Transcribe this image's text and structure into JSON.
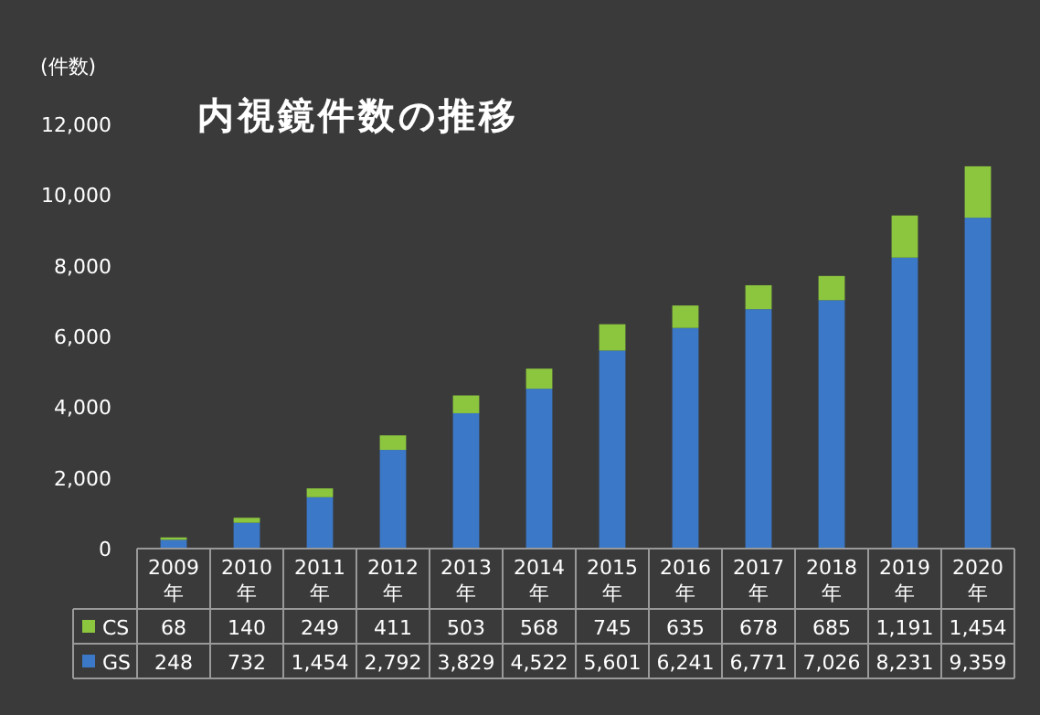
{
  "chart_data": {
    "type": "bar",
    "title": "内視鏡件数の推移",
    "ylabel": "(件数)",
    "stacked": true,
    "legend": "bottom",
    "categories": [
      "2009年",
      "2010年",
      "2011年",
      "2012年",
      "2013年",
      "2014年",
      "2015年",
      "2016年",
      "2017年",
      "2018年",
      "2019年",
      "2020年"
    ],
    "series": [
      {
        "name": "GS",
        "color": "#3b78c8",
        "values": [
          248,
          732,
          1454,
          2792,
          3829,
          4522,
          5601,
          6241,
          6771,
          7026,
          8231,
          9359
        ],
        "value_labels": [
          "248",
          "732",
          "1,454",
          "2,792",
          "3,829",
          "4,522",
          "5,601",
          "6,241",
          "6,771",
          "7,026",
          "8,231",
          "9,359"
        ]
      },
      {
        "name": "CS",
        "color": "#8cc63f",
        "values": [
          68,
          140,
          249,
          411,
          503,
          568,
          745,
          635,
          678,
          685,
          1191,
          1454
        ],
        "value_labels": [
          "68",
          "140",
          "249",
          "411",
          "503",
          "568",
          "745",
          "635",
          "678",
          "685",
          "1,191",
          "1,454"
        ]
      }
    ],
    "ylim": [
      0,
      12000
    ],
    "yticks": [
      0,
      {
        "value": 2000,
        "label": "2,000"
      },
      {
        "value": 4000,
        "label": "4,000"
      },
      {
        "value": 6000,
        "label": "6,000"
      },
      {
        "value": 8000,
        "label": "8,000"
      },
      {
        "value": 10000,
        "label": "10,000"
      },
      {
        "value": 12000,
        "label": "12,000"
      }
    ]
  }
}
